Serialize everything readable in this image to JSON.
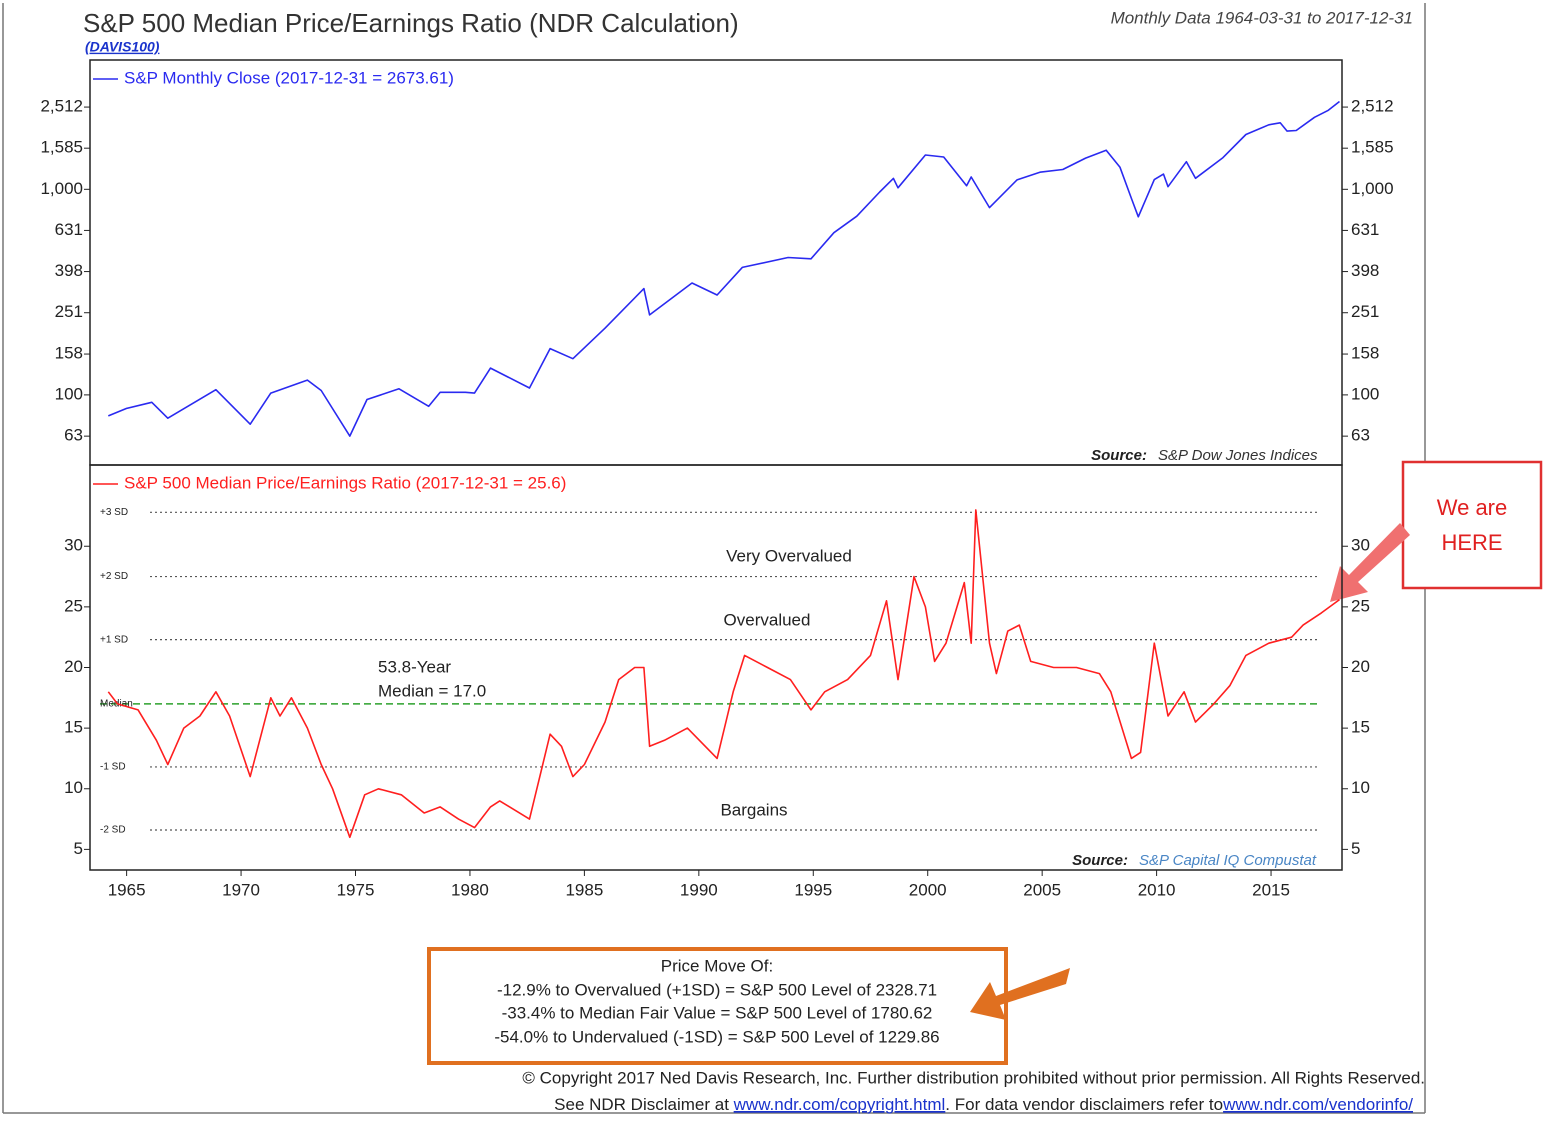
{
  "header": {
    "title": "S&P 500 Median Price/Earnings Ratio (NDR Calculation)",
    "subtitle": "(DAVIS100)",
    "data_range": "Monthly Data 1964-03-31 to 2017-12-31"
  },
  "chart_data": [
    {
      "type": "line",
      "log_scale": true,
      "xlim": [
        1963.4,
        2018.1
      ],
      "ylim": [
        45.6,
        4256
      ],
      "yticks": [
        63,
        100,
        158,
        251,
        398,
        631,
        {
          "value": 1000,
          "label": "1,000"
        },
        {
          "value": 1585,
          "label": "1,585"
        },
        {
          "value": 2512,
          "label": "2,512"
        }
      ],
      "source": {
        "label": "Source:",
        "text": "S&P Dow Jones Indices"
      },
      "x": [
        1964.2,
        1965,
        1966.1,
        1966.8,
        1968.9,
        1970.4,
        1971.3,
        1972.9,
        1973.5,
        1974.75,
        1975.5,
        1976.9,
        1978.2,
        1978.7,
        1979.8,
        1980.2,
        1980.9,
        1982.6,
        1983.5,
        1984.5,
        1985.9,
        1987.6,
        1987.85,
        1989.7,
        1990.8,
        1991.9,
        1993.9,
        1994.9,
        1995.9,
        1996.9,
        1997.9,
        1998.5,
        1998.7,
        1999.9,
        2000.7,
        2001.7,
        2001.9,
        2002.7,
        2003.9,
        2004.9,
        2005.9,
        2006.9,
        2007.8,
        2008.4,
        2008.9,
        2009.2,
        2009.9,
        2010.3,
        2010.5,
        2011.3,
        2011.7,
        2012.9,
        2013.9,
        2014.9,
        2015.4,
        2015.7,
        2016.1,
        2016.9,
        2017.5,
        2017.99
      ],
      "series": [
        {
          "name": "S&P Monthly Close (2017-12-31 = 2673.61)",
          "color": "#2a2af0",
          "values": [
            79,
            86,
            92,
            77,
            106,
            72,
            102,
            118,
            105,
            63,
            95,
            107,
            88,
            103,
            103,
            102,
            135,
            108,
            168,
            150,
            211,
            329,
            245,
            350,
            306,
            417,
            466,
            459,
            615,
            740,
            970,
            1130,
            1017,
            1469,
            1436,
            1040,
            1148,
            815,
            1111,
            1211,
            1248,
            1418,
            1549,
            1280,
            903,
            735,
            1115,
            1186,
            1030,
            1363,
            1131,
            1426,
            1848,
            2059,
            2107,
            1920,
            1932,
            2239,
            2423,
            2673.61
          ]
        }
      ]
    },
    {
      "type": "line",
      "xlim": [
        1963.4,
        2018.1
      ],
      "ylim": [
        3.3,
        36.7
      ],
      "yticks": [
        5,
        10,
        15,
        20,
        25,
        30
      ],
      "xticks": [
        1965,
        1970,
        1975,
        1980,
        1985,
        1990,
        1995,
        2000,
        2005,
        2010,
        2015
      ],
      "source": {
        "label": "Source:",
        "text": "S&P Capital IQ Compustat"
      },
      "reference_lines": [
        {
          "label": "+3 SD",
          "value": 32.8,
          "color": "#555555"
        },
        {
          "label": "+2 SD",
          "value": 27.5,
          "color": "#555555"
        },
        {
          "label": "+1 SD",
          "value": 22.3,
          "color": "#555555"
        },
        {
          "label": "Median",
          "value": 17.0,
          "color": "#2ca02c"
        },
        {
          "label": "-1 SD",
          "value": 11.8,
          "color": "#555555"
        },
        {
          "label": "-2 SD",
          "value": 6.6,
          "color": "#555555"
        }
      ],
      "zones": [
        "Very Overvalued",
        "Overvalued",
        "Bargains"
      ],
      "median_note": [
        "53.8-Year",
        "Median = 17.0"
      ],
      "x": [
        1964.2,
        1964.6,
        1965.5,
        1966.3,
        1966.8,
        1967.5,
        1968.2,
        1968.9,
        1969.5,
        1970.4,
        1971.3,
        1971.7,
        1972.2,
        1972.9,
        1973.5,
        1974.0,
        1974.75,
        1975.4,
        1976,
        1977,
        1978,
        1978.7,
        1979.5,
        1980.2,
        1980.9,
        1981.3,
        1982.6,
        1983.5,
        1984,
        1984.5,
        1985,
        1985.9,
        1986.5,
        1987.2,
        1987.6,
        1987.85,
        1988.5,
        1989.5,
        1990.8,
        1991.5,
        1992,
        1993,
        1994,
        1994.9,
        1995.5,
        1996.5,
        1997.5,
        1998.2,
        1998.7,
        1999.4,
        1999.9,
        2000.3,
        2000.8,
        2001.6,
        2001.9,
        2002.1,
        2002.7,
        2003,
        2003.5,
        2004,
        2004.5,
        2005.5,
        2006.5,
        2007.5,
        2008,
        2008.9,
        2009.3,
        2009.9,
        2010.5,
        2011.2,
        2011.7,
        2012.5,
        2013.2,
        2013.9,
        2014.9,
        2015.9,
        2016.4,
        2017.2,
        2017.99
      ],
      "series": [
        {
          "name": "S&P 500 Median Price/Earnings Ratio (2017-12-31 = 25.6)",
          "color": "#ff1f1f",
          "values": [
            18,
            17,
            16.5,
            14,
            12,
            15,
            16,
            18,
            16,
            11,
            17.5,
            16,
            17.5,
            15,
            12,
            10,
            6,
            9.5,
            10,
            9.5,
            8,
            8.5,
            7.5,
            6.8,
            8.5,
            9,
            7.5,
            14.5,
            13.5,
            11,
            12,
            15.5,
            19,
            20,
            20,
            13.5,
            14,
            15,
            12.5,
            18,
            21,
            20,
            19,
            16.5,
            18,
            19,
            21,
            25.5,
            19,
            27.5,
            25,
            20.5,
            22,
            27,
            22,
            33,
            22,
            19.5,
            23,
            23.5,
            20.5,
            20,
            20,
            19.5,
            18,
            12.5,
            13,
            22,
            16,
            18,
            15.5,
            17,
            18.5,
            21,
            22,
            22.5,
            23.5,
            24.5,
            25.6
          ]
        }
      ]
    }
  ],
  "price_move": {
    "title": "Price Move Of:",
    "lines": [
      "-12.9% to Overvalued (+1SD) = S&P 500 Level of 2328.71",
      "-33.4% to Median Fair Value = S&P 500 Level of 1780.62",
      "-54.0% to Undervalued (-1SD) = S&P 500 Level of 1229.86"
    ]
  },
  "callout": [
    "We are",
    "HERE"
  ],
  "footer": {
    "copyright": "© Copyright 2017 Ned Davis Research, Inc. Further distribution prohibited without prior permission. All Rights Reserved.",
    "disclaimer": "See NDR Disclaimer at ",
    "link1": "www.ndr.com/copyright.html",
    "middle": ". For data vendor disclaimers refer to",
    "link2": "www.ndr.com/vendorinfo/"
  }
}
